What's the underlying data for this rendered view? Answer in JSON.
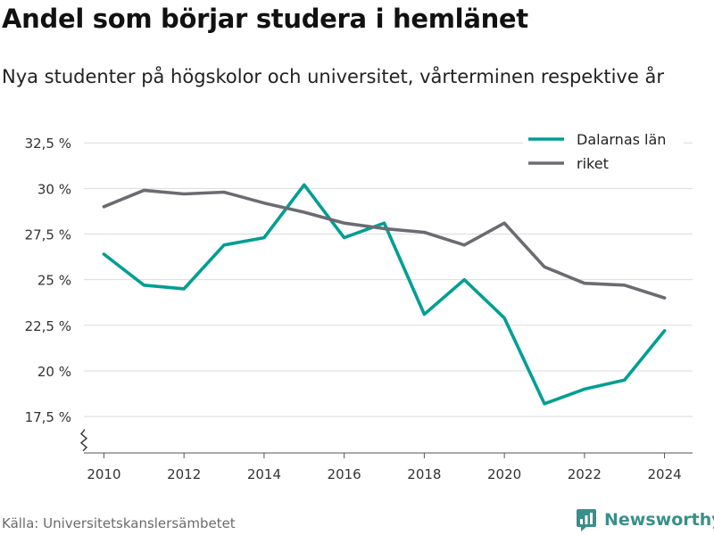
{
  "header": {
    "title": "Andel som börjar studera i hemlänet",
    "subtitle": "Nya studenter på högskolor och universitet, vårterminen respektive år"
  },
  "footer": {
    "source": "Källa: Universitetskanslersämbetet",
    "brand": "Newsworthy"
  },
  "colors": {
    "dalarna": "#009e94",
    "riket": "#6b6b72",
    "grid": "#dcdcdc",
    "axis": "#555555"
  },
  "icons": {
    "logo": "newsworthy-logo-icon",
    "axis_break": "axis-break-icon"
  },
  "chart_data": {
    "type": "line",
    "title": "Andel som börjar studera i hemlänet",
    "subtitle": "Nya studenter på högskolor och universitet, vårterminen respektive år",
    "xlabel": "",
    "ylabel": "",
    "x": [
      2010,
      2011,
      2012,
      2013,
      2014,
      2015,
      2016,
      2017,
      2018,
      2019,
      2020,
      2021,
      2022,
      2023,
      2024
    ],
    "x_ticks": [
      "2010",
      "2012",
      "2014",
      "2016",
      "2018",
      "2020",
      "2022",
      "2024"
    ],
    "y_ticks": [
      "17,5 %",
      "20 %",
      "22,5 %",
      "25 %",
      "27,5 %",
      "30 %",
      "32,5 %"
    ],
    "ylim": [
      15.5,
      33
    ],
    "y_axis_break": true,
    "grid": true,
    "legend_position": "top-right",
    "series": [
      {
        "name": "Dalarnas län",
        "color": "#009e94",
        "values": [
          26.4,
          24.7,
          24.5,
          26.9,
          27.3,
          30.2,
          27.3,
          28.1,
          23.1,
          25.0,
          22.9,
          18.2,
          19.0,
          19.5,
          22.2
        ]
      },
      {
        "name": "riket",
        "color": "#6b6b72",
        "values": [
          29.0,
          29.9,
          29.7,
          29.8,
          29.2,
          28.7,
          28.1,
          27.8,
          27.6,
          26.9,
          28.1,
          25.7,
          24.8,
          24.7,
          24.0
        ]
      }
    ]
  }
}
